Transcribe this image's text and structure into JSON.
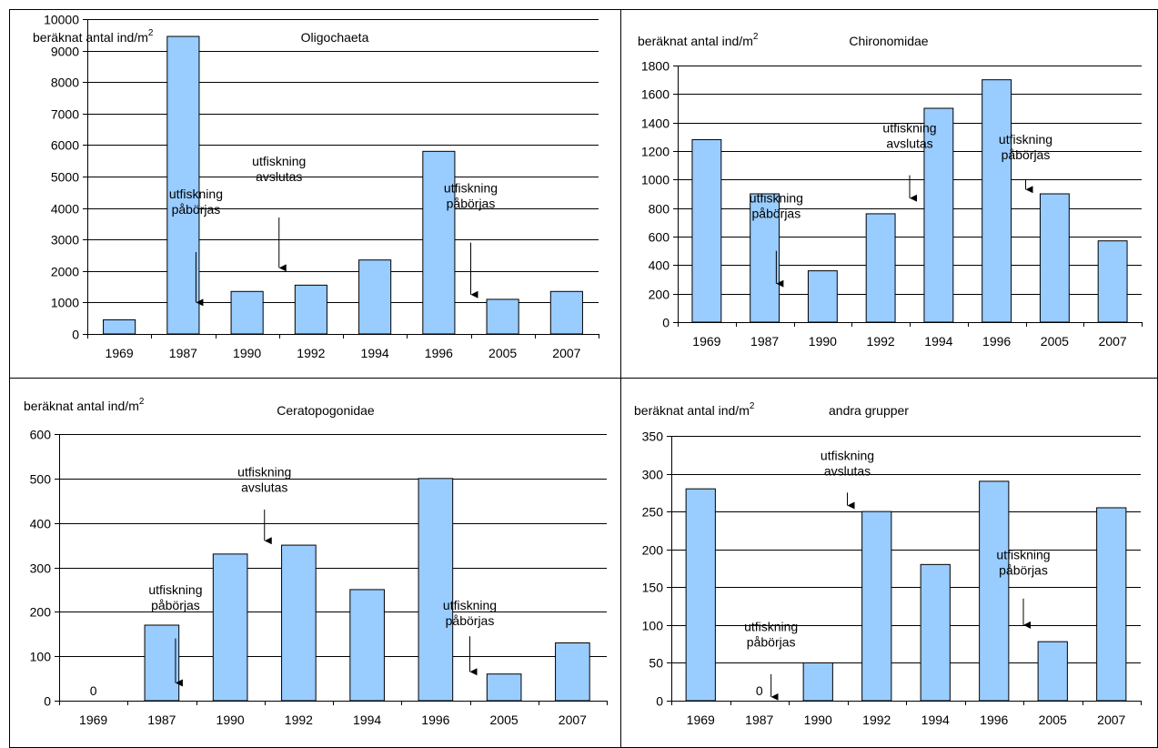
{
  "bar_color": "#99CCFF",
  "bar_stroke": "#000000",
  "chart_data": [
    {
      "type": "bar",
      "title": "Oligochaeta",
      "ylabel": "beräknat antal ind/m",
      "ylabel_sup": "2",
      "categories": [
        "1969",
        "1987",
        "1990",
        "1992",
        "1994",
        "1996",
        "2005",
        "2007"
      ],
      "values": [
        450,
        9450,
        1350,
        1550,
        2350,
        5800,
        1100,
        1350
      ],
      "ylim": [
        0,
        10000
      ],
      "yticks": [
        "0",
        "1000",
        "2000",
        "3000",
        "4000",
        "5000",
        "6000",
        "7000",
        "8000",
        "9000",
        "10000"
      ],
      "grid": true,
      "value_labels": [],
      "annotations": [
        {
          "lines": [
            "utfiskning",
            "påbörjas"
          ],
          "x": 1.7,
          "y_text": 4300,
          "y_arrow_start": 2600,
          "y_arrow_end": 1000
        },
        {
          "lines": [
            "utfiskning",
            "avslutas"
          ],
          "x": 3.0,
          "y_text": 5350,
          "y_arrow_start": 3700,
          "y_arrow_end": 2100
        },
        {
          "lines": [
            "utfiskning",
            "påbörjas"
          ],
          "x": 6.0,
          "y_text": 4500,
          "y_arrow_start": 2900,
          "y_arrow_end": 1250
        }
      ]
    },
    {
      "type": "bar",
      "title": "Chironomidae",
      "ylabel": "beräknat antal ind/m",
      "ylabel_sup": "2",
      "categories": [
        "1969",
        "1987",
        "1990",
        "1992",
        "1994",
        "1996",
        "2005",
        "2007"
      ],
      "values": [
        1280,
        900,
        360,
        760,
        1500,
        1700,
        900,
        570
      ],
      "ylim": [
        0,
        1800
      ],
      "yticks": [
        "0",
        "200",
        "400",
        "600",
        "800",
        "1000",
        "1200",
        "1400",
        "1600",
        "1800"
      ],
      "grid": true,
      "value_labels": [],
      "annotations": [
        {
          "lines": [
            "utfiskning",
            "påbörjas"
          ],
          "x": 1.7,
          "y_text": 840,
          "y_arrow_start": 500,
          "y_arrow_end": 270
        },
        {
          "lines": [
            "utfiskning",
            "avslutas"
          ],
          "x": 4.0,
          "y_text": 1330,
          "y_arrow_start": 1030,
          "y_arrow_end": 870
        },
        {
          "lines": [
            "utfiskning",
            "påbörjas"
          ],
          "x": 6.0,
          "y_text": 1250,
          "y_arrow_start": 1000,
          "y_arrow_end": 930
        }
      ]
    },
    {
      "type": "bar",
      "title": "Ceratopogonidae",
      "ylabel": "beräknat antal ind/m",
      "ylabel_sup": "2",
      "categories": [
        "1969",
        "1987",
        "1990",
        "1992",
        "1994",
        "1996",
        "2005",
        "2007"
      ],
      "values": [
        0,
        170,
        330,
        350,
        250,
        500,
        60,
        130
      ],
      "ylim": [
        0,
        600
      ],
      "yticks": [
        "0",
        "100",
        "200",
        "300",
        "400",
        "500",
        "600"
      ],
      "grid": true,
      "value_labels": [
        {
          "index": 0,
          "text": "0"
        }
      ],
      "annotations": [
        {
          "lines": [
            "utfiskning",
            "påbörjas"
          ],
          "x": 1.7,
          "y_text": 240,
          "y_arrow_start": 140,
          "y_arrow_end": 40
        },
        {
          "lines": [
            "utfiskning",
            "avslutas"
          ],
          "x": 3.0,
          "y_text": 505,
          "y_arrow_start": 430,
          "y_arrow_end": 360
        },
        {
          "lines": [
            "utfiskning",
            "påbörjas"
          ],
          "x": 6.0,
          "y_text": 205,
          "y_arrow_start": 145,
          "y_arrow_end": 65
        }
      ]
    },
    {
      "type": "bar",
      "title": "andra grupper",
      "ylabel": "beräknat antal ind/m",
      "ylabel_sup": "2",
      "categories": [
        "1969",
        "1987",
        "1990",
        "1992",
        "1994",
        "1996",
        "2005",
        "2007"
      ],
      "values": [
        280,
        0,
        50,
        250,
        180,
        290,
        78,
        255
      ],
      "ylim": [
        0,
        350
      ],
      "yticks": [
        "0",
        "50",
        "100",
        "150",
        "200",
        "250",
        "300",
        "350"
      ],
      "grid": true,
      "value_labels": [
        {
          "index": 1,
          "text": "0"
        }
      ],
      "annotations": [
        {
          "lines": [
            "utfiskning",
            "påbörjas"
          ],
          "x": 1.7,
          "y_text": 92,
          "y_arrow_start": 35,
          "y_arrow_end": 5
        },
        {
          "lines": [
            "utfiskning",
            "avslutas"
          ],
          "x": 3.0,
          "y_text": 318,
          "y_arrow_start": 275,
          "y_arrow_end": 258
        },
        {
          "lines": [
            "utfiskning",
            "påbörjas"
          ],
          "x": 6.0,
          "y_text": 187,
          "y_arrow_start": 135,
          "y_arrow_end": 100
        }
      ]
    }
  ]
}
